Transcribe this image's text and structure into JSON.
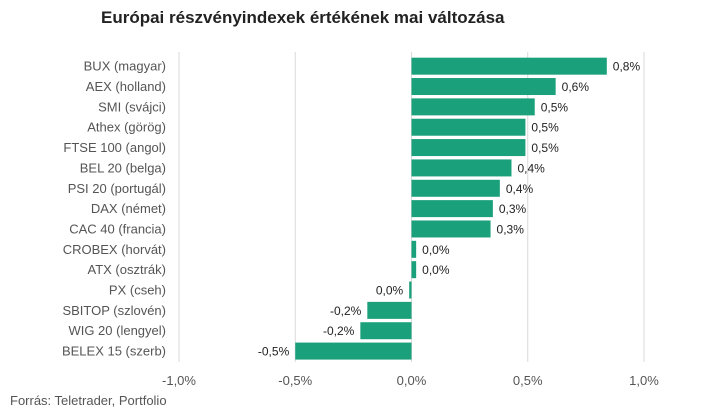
{
  "chart_data": {
    "type": "bar",
    "orientation": "horizontal",
    "title": "Európai részvényindexek értékének mai változása",
    "source": "Forrás: Teletrader, Portfolio",
    "categories": [
      "BUX (magyar)",
      "AEX (holland)",
      "SMI (svájci)",
      "Athex (görög)",
      "FTSE 100 (angol)",
      "BEL 20 (belga)",
      "PSI 20 (portugál)",
      "DAX (német)",
      "CAC 40 (francia)",
      "CROBEX (horvát)",
      "ATX (osztrák)",
      "PX (cseh)",
      "SBITOP (szlovén)",
      "WIG 20 (lengyel)",
      "BELEX 15 (szerb)"
    ],
    "values": [
      0.84,
      0.62,
      0.53,
      0.49,
      0.49,
      0.43,
      0.38,
      0.35,
      0.34,
      0.02,
      0.02,
      -0.01,
      -0.19,
      -0.22,
      -0.5
    ],
    "value_labels": [
      "0,8%",
      "0,6%",
      "0,5%",
      "0,5%",
      "0,5%",
      "0,4%",
      "0,4%",
      "0,3%",
      "0,3%",
      "0,0%",
      "0,0%",
      "0,0%",
      "-0,2%",
      "-0,2%",
      "-0,5%"
    ],
    "xlim": [
      -1.0,
      1.0
    ],
    "x_ticks": [
      -1.0,
      -0.5,
      0.0,
      0.5,
      1.0
    ],
    "x_tick_labels": [
      "-1,0%",
      "-0,5%",
      "0,0%",
      "0,5%",
      "1,0%"
    ],
    "grid": "vertical",
    "bar_color": "#1aa07a"
  }
}
